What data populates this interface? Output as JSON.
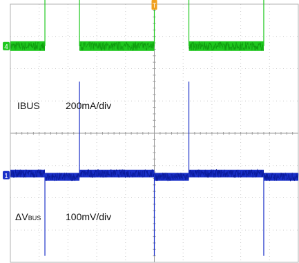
{
  "chart_data": {
    "type": "line",
    "title": "",
    "xlabel": "",
    "ylabel": "",
    "grid": true,
    "grid_style": "dotted",
    "divisions": {
      "x": 10,
      "y": 8
    },
    "xlim": [
      0,
      10
    ],
    "ylim": [
      -4,
      4
    ],
    "trigger_marker": {
      "label": "T",
      "x_div": 5.0,
      "color": "#f0a020"
    },
    "channels": [
      {
        "id": "ch4",
        "marker_label": "4",
        "name": "IBUS",
        "scale": "200mA/div",
        "color": "#1ec81e",
        "waveform": "square",
        "ground_div": 2.7,
        "low_div": 2.7,
        "high_div": 5.4,
        "noise_div": 0.15,
        "edges_div": [
          1.2,
          2.4,
          5.0,
          6.2,
          8.8
        ]
      },
      {
        "id": "ch1",
        "marker_label": "1",
        "name_main": "ΔV",
        "name_sub": "BUS",
        "scale": "100mV/div",
        "color": "#1a30c8",
        "waveform": "ripple",
        "ground_div": -1.3,
        "low_div": -1.25,
        "high_div": -1.35,
        "noise_div": 0.12,
        "spikes": [
          {
            "x_div": 1.2,
            "peak_div": -3.8
          },
          {
            "x_div": 2.4,
            "peak_div": 1.6
          },
          {
            "x_div": 5.0,
            "peak_div": -3.8
          },
          {
            "x_div": 6.2,
            "peak_div": 1.6
          },
          {
            "x_div": 8.8,
            "peak_div": -3.8
          }
        ]
      }
    ]
  }
}
